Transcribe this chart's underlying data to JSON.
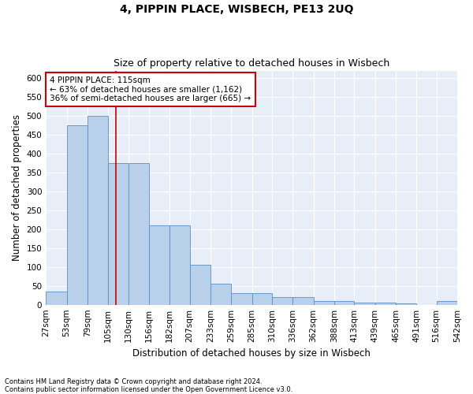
{
  "title": "4, PIPPIN PLACE, WISBECH, PE13 2UQ",
  "subtitle": "Size of property relative to detached houses in Wisbech",
  "xlabel": "Distribution of detached houses by size in Wisbech",
  "ylabel": "Number of detached properties",
  "footnote1": "Contains HM Land Registry data © Crown copyright and database right 2024.",
  "footnote2": "Contains public sector information licensed under the Open Government Licence v3.0.",
  "annotation_line1": "4 PIPPIN PLACE: 115sqm",
  "annotation_line2": "← 63% of detached houses are smaller (1,162)",
  "annotation_line3": "36% of semi-detached houses are larger (665) →",
  "bar_values": [
    35,
    475,
    500,
    375,
    375,
    210,
    210,
    105,
    55,
    30,
    30,
    20,
    20,
    10,
    10,
    5,
    5,
    3,
    0,
    10
  ],
  "bin_edges": [
    27,
    53,
    79,
    105,
    130,
    156,
    182,
    207,
    233,
    259,
    285,
    310,
    336,
    362,
    388,
    413,
    439,
    465,
    491,
    516,
    542
  ],
  "bin_labels": [
    "27sqm",
    "53sqm",
    "79sqm",
    "105sqm",
    "130sqm",
    "156sqm",
    "182sqm",
    "207sqm",
    "233sqm",
    "259sqm",
    "285sqm",
    "310sqm",
    "336sqm",
    "362sqm",
    "388sqm",
    "413sqm",
    "439sqm",
    "465sqm",
    "491sqm",
    "516sqm",
    "542sqm"
  ],
  "bar_color": "#b8d0ea",
  "bar_edge_color": "#5b8ec4",
  "vline_color": "#cc0000",
  "vline_x": 115,
  "annotation_box_edge_color": "#cc0000",
  "ylim": [
    0,
    620
  ],
  "yticks": [
    0,
    50,
    100,
    150,
    200,
    250,
    300,
    350,
    400,
    450,
    500,
    550,
    600
  ],
  "bg_color": "#e8eef8",
  "grid_color": "#ffffff",
  "title_fontsize": 10,
  "subtitle_fontsize": 9,
  "xlabel_fontsize": 8.5,
  "ylabel_fontsize": 8.5,
  "tick_fontsize": 7.5,
  "annotation_fontsize": 7.5,
  "footnote_fontsize": 6
}
